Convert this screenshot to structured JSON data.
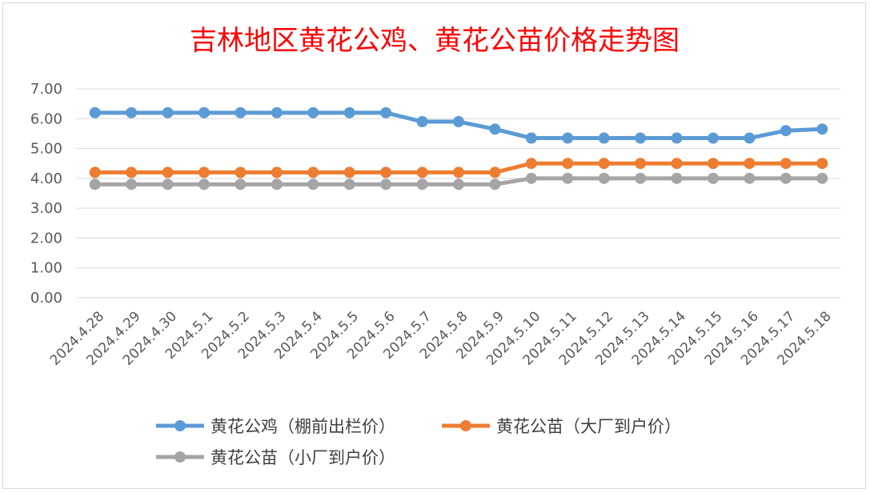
{
  "chart_data": {
    "type": "line",
    "title": "吉林地区黄花公鸡、黄花公苗价格走势图",
    "xlabel": "",
    "ylabel": "",
    "ylim": [
      0,
      7
    ],
    "yticks": [
      "0.00",
      "1.00",
      "2.00",
      "3.00",
      "4.00",
      "5.00",
      "6.00",
      "7.00"
    ],
    "grid": true,
    "legend_position": "bottom",
    "categories": [
      "2024.4.28",
      "2024.4.29",
      "2024.4.30",
      "2024.5.1",
      "2024.5.2",
      "2024.5.3",
      "2024.5.4",
      "2024.5.5",
      "2024.5.6",
      "2024.5.7",
      "2024.5.8",
      "2024.5.9",
      "2024.5.10",
      "2024.5.11",
      "2024.5.12",
      "2024.5.13",
      "2024.5.14",
      "2024.5.15",
      "2024.5.16",
      "2024.5.17",
      "2024.5.18"
    ],
    "series": [
      {
        "name": "黄花公鸡（棚前出栏价）",
        "color": "#5b9bd5",
        "values": [
          6.2,
          6.2,
          6.2,
          6.2,
          6.2,
          6.2,
          6.2,
          6.2,
          6.2,
          5.9,
          5.9,
          5.65,
          5.35,
          5.35,
          5.35,
          5.35,
          5.35,
          5.35,
          5.35,
          5.6,
          5.65
        ]
      },
      {
        "name": "黄花公苗（大厂到户价）",
        "color": "#ed7d31",
        "values": [
          4.2,
          4.2,
          4.2,
          4.2,
          4.2,
          4.2,
          4.2,
          4.2,
          4.2,
          4.2,
          4.2,
          4.2,
          4.5,
          4.5,
          4.5,
          4.5,
          4.5,
          4.5,
          4.5,
          4.5,
          4.5
        ]
      },
      {
        "name": "黄花公苗（小厂到户价）",
        "color": "#a5a5a5",
        "values": [
          3.8,
          3.8,
          3.8,
          3.8,
          3.8,
          3.8,
          3.8,
          3.8,
          3.8,
          3.8,
          3.8,
          3.8,
          4.0,
          4.0,
          4.0,
          4.0,
          4.0,
          4.0,
          4.0,
          4.0,
          4.0
        ]
      }
    ]
  }
}
